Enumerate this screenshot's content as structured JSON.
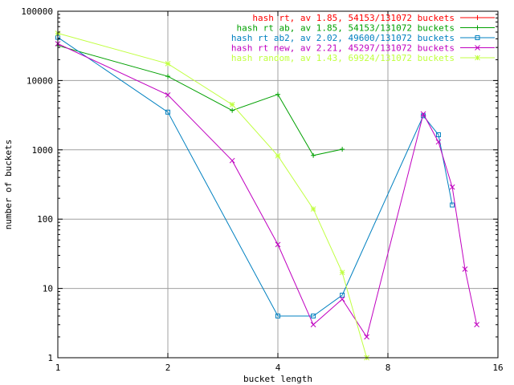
{
  "chart_data": {
    "type": "line",
    "title": "",
    "xlabel": "bucket length",
    "ylabel": "number of buckets",
    "x_scale": "log2",
    "y_scale": "log10",
    "xlim": [
      1,
      16
    ],
    "ylim": [
      1,
      100000
    ],
    "x_ticks": [
      1,
      2,
      4,
      8,
      16
    ],
    "y_ticks": [
      1,
      10,
      100,
      1000,
      10000,
      100000
    ],
    "grid": true,
    "legend_position": "top-right",
    "series": [
      {
        "name": "hash rt, av 1.85, 54153/131072 buckets",
        "color": "#ff0000",
        "marker": "plus",
        "points": []
      },
      {
        "name": "hash rt ab, av 1.85, 54153/131072 buckets",
        "color": "#00a000",
        "marker": "plus",
        "points": [
          [
            1,
            32000
          ],
          [
            2,
            11500
          ],
          [
            3,
            3700
          ],
          [
            4,
            6300
          ],
          [
            5,
            830
          ],
          [
            6,
            1020
          ]
        ]
      },
      {
        "name": "hash rt ab2, av 2.02, 49600/131072 buckets",
        "color": "#0080c0",
        "marker": "square",
        "points": [
          [
            1,
            42000
          ],
          [
            2,
            3500
          ],
          [
            4,
            4
          ],
          [
            5,
            4
          ],
          [
            6,
            8
          ],
          [
            10,
            3100
          ],
          [
            11,
            1650
          ],
          [
            12,
            160
          ]
        ]
      },
      {
        "name": "hash rt new, av 2.21, 45297/131072 buckets",
        "color": "#c000c0",
        "marker": "cross",
        "points": [
          [
            1,
            34000
          ],
          [
            2,
            6200
          ],
          [
            3,
            700
          ],
          [
            4,
            43
          ],
          [
            5,
            3
          ],
          [
            6,
            7
          ],
          [
            7,
            2
          ],
          [
            10,
            3300
          ],
          [
            11,
            1300
          ],
          [
            12,
            290
          ],
          [
            13,
            19
          ],
          [
            14,
            3
          ]
        ]
      },
      {
        "name": "hash random, av 1.43, 69924/131072 buckets",
        "color": "#c0ff40",
        "marker": "star",
        "points": [
          [
            1,
            48000
          ],
          [
            2,
            17500
          ],
          [
            3,
            4500
          ],
          [
            4,
            820
          ],
          [
            5,
            140
          ],
          [
            6,
            17
          ],
          [
            7,
            1
          ]
        ]
      }
    ]
  }
}
